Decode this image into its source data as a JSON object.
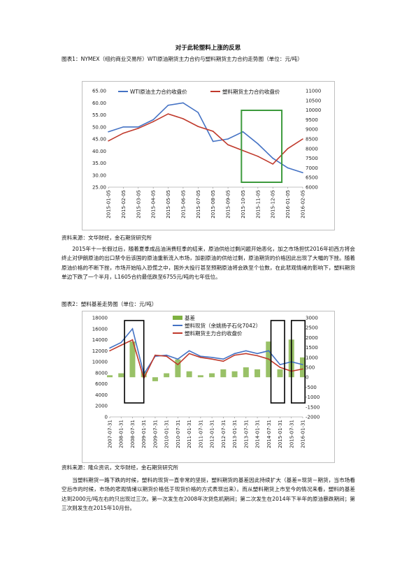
{
  "title": "对于此轮塑料上涨的反思",
  "fig1": {
    "caption": "图表1：NYMEX（纽约商业交易所）WTI原油期货主力合约与塑料期货主力合约走势图（单位：元/吨）",
    "source": "资料来源：文华财经，金石期货研究所"
  },
  "para1": "2015年十一长假过后，随着夏季成品油消费旺季的结束，原油供给过剩问题开始恶化，加之市场担忧2016年初西方将会终止对伊朗原油的出口禁令后该国的原油重新流入市场，加剧原油的供给过剩，原油期货的价格因此出现了大幅的下挫。随着原油价格的不断下挫，市场开始陷入恐慌之中，国外大投行甚至预期原油将会跌至个位数，在此悲观情绪的影响下，塑料期货单边下跌了一个半月，L1605合约最低跌至6755元/吨的七年低位。",
  "fig2": {
    "caption": "图表2：塑料基差走势图（单位：元/吨）",
    "source": "资料来源：隆众资讯，文华财经，金石期货研究所"
  },
  "para2": "当塑料期货一路下跌的时候，塑料的现货一直非常的坚挺，塑料期货的基差因此持续扩大（基差=现货－期货，当市场看空后市的时候，市场的悲观情绪以期货价格低于现货价格的方式表现出来）。而从塑料期货上市至今的情况来看，塑料的基差达到2000元/吨左右的只出现过三次。第一次发生在2008年次贷危机期间；第二次发生在2014年下半年的原油暴跌期间；第三次则发生在2015年10月份。",
  "chart_data": [
    {
      "type": "line",
      "x": [
        "2015-01-05",
        "2015-02-05",
        "2015-03-05",
        "2015-04-05",
        "2015-05-05",
        "2015-06-05",
        "2015-07-05",
        "2015-08-05",
        "2015-09-05",
        "2015-10-05",
        "2015-11-05",
        "2015-12-05",
        "2016-01-05",
        "2016-02-05"
      ],
      "series": [
        {
          "name": "WTI原油主力合约收盘价",
          "axis": "left",
          "color": "#4472C4",
          "values": [
            48,
            50,
            50,
            53,
            59,
            60,
            56,
            44,
            45,
            48,
            43,
            37,
            33,
            31
          ]
        },
        {
          "name": "塑料期货主力合约收盘价",
          "axis": "right",
          "color": "#C0392B",
          "values": [
            8400,
            8800,
            9050,
            9400,
            9800,
            9550,
            9150,
            8900,
            8200,
            7900,
            7600,
            7200,
            8000,
            8500
          ]
        }
      ],
      "yleft": {
        "ticks": [
          "65.00",
          "60.00",
          "55.00",
          "50.00",
          "45.00",
          "40.00",
          "35.00",
          "30.00",
          "25.00"
        ],
        "lim": [
          25,
          65
        ]
      },
      "yright": {
        "ticks": [
          "11000",
          "10500",
          "10000",
          "9500",
          "9000",
          "8500",
          "8000",
          "7500",
          "7000",
          "6500",
          "6000"
        ],
        "lim": [
          6000,
          11000
        ]
      },
      "legend": "top",
      "annotation": "green box Oct–Dec 2015"
    },
    {
      "type": "line",
      "x": [
        "2007-07-31",
        "2008-01-31",
        "2008-07-31",
        "2009-01-31",
        "2009-07-31",
        "2010-01-31",
        "2010-07-31",
        "2011-01-31",
        "2011-07-31",
        "2012-01-31",
        "2012-07-31",
        "2013-01-31",
        "2013-07-31",
        "2014-01-31",
        "2014-07-31",
        "2015-01-31",
        "2015-07-31",
        "2016-01-31"
      ],
      "series": [
        {
          "name": "基差",
          "axis": "right",
          "color": "#7FB241",
          "type": "area",
          "values": [
            100,
            200,
            1800,
            300,
            -200,
            200,
            900,
            300,
            100,
            200,
            400,
            300,
            500,
            400,
            1800,
            400,
            1900,
            1000
          ]
        },
        {
          "name": "塑料现货（余姚扬子石化7042）",
          "axis": "left",
          "color": "#4472C4",
          "values": [
            12500,
            13500,
            16000,
            7800,
            11000,
            11200,
            10500,
            12000,
            11000,
            10800,
            10500,
            11500,
            12000,
            11500,
            12000,
            9500,
            10000,
            9500
          ]
        },
        {
          "name": "塑料期货主力合约收盘价",
          "axis": "left",
          "color": "#C0392B",
          "values": [
            12000,
            13000,
            14000,
            7000,
            11200,
            11000,
            9500,
            11500,
            10800,
            10500,
            10100,
            11200,
            11500,
            11100,
            10500,
            9000,
            8300,
            8700
          ]
        }
      ],
      "yleft": {
        "ticks": [
          "18000",
          "16000",
          "14000",
          "12000",
          "10000",
          "8000",
          "6000",
          "4000",
          "2000",
          "0"
        ],
        "lim": [
          0,
          18000
        ]
      },
      "yright": {
        "ticks": [
          "3000",
          "2500",
          "2000",
          "1500",
          "1000",
          "500",
          "0",
          "-500",
          "-1000",
          "-1500",
          "-2000"
        ],
        "lim": [
          -2000,
          3000
        ]
      },
      "legend": "top-right",
      "annotation": "black boxes 2008, 2014 H2, 2015-10"
    }
  ]
}
